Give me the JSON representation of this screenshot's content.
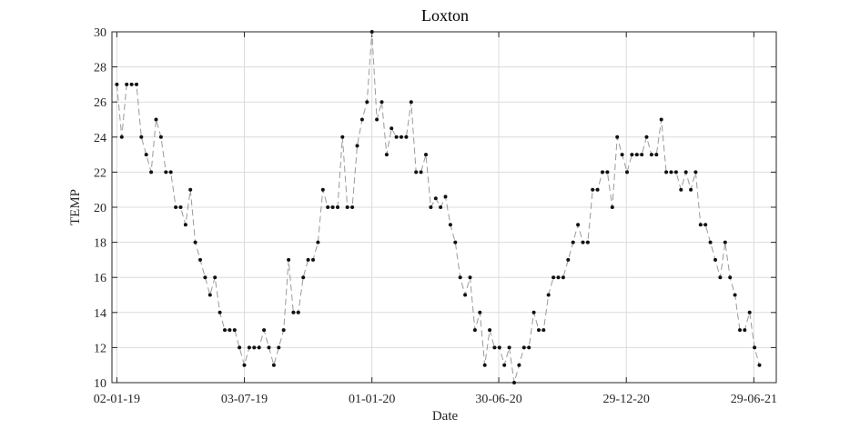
{
  "chart_data": {
    "type": "line",
    "title": "Loxton",
    "xlabel": "Date",
    "ylabel": "TEMP",
    "ylim": [
      10,
      30
    ],
    "yticks": [
      10,
      12,
      14,
      16,
      18,
      20,
      22,
      24,
      26,
      28,
      30
    ],
    "xlim": [
      "2018-12-26",
      "2021-07-31"
    ],
    "xticks": [
      {
        "date": "2019-01-02",
        "label": "02-01-19"
      },
      {
        "date": "2019-07-03",
        "label": "03-07-19"
      },
      {
        "date": "2020-01-01",
        "label": "01-01-20"
      },
      {
        "date": "2020-06-30",
        "label": "30-06-20"
      },
      {
        "date": "2020-12-29",
        "label": "29-12-20"
      },
      {
        "date": "2021-06-29",
        "label": "29-06-21"
      }
    ],
    "grid": true,
    "line_style": "dashed",
    "colors": {
      "line": "#9a9a9a",
      "marker": "#111111",
      "grid": "#dcdcdc",
      "axis": "#262626"
    },
    "series": [
      {
        "x": [
          "2019-01-02",
          "2019-01-09",
          "2019-01-16",
          "2019-01-23",
          "2019-01-30",
          "2019-02-06",
          "2019-02-13",
          "2019-02-20",
          "2019-02-27",
          "2019-03-06",
          "2019-03-13",
          "2019-03-20",
          "2019-03-27",
          "2019-04-03",
          "2019-04-10",
          "2019-04-17",
          "2019-04-24",
          "2019-05-01",
          "2019-05-08",
          "2019-05-15",
          "2019-05-22",
          "2019-05-29",
          "2019-06-05",
          "2019-06-12",
          "2019-06-19",
          "2019-06-26",
          "2019-07-03",
          "2019-07-10",
          "2019-07-17",
          "2019-07-24",
          "2019-07-31",
          "2019-08-07",
          "2019-08-14",
          "2019-08-21",
          "2019-08-28",
          "2019-09-04",
          "2019-09-11",
          "2019-09-18",
          "2019-09-25",
          "2019-10-02",
          "2019-10-09",
          "2019-10-16",
          "2019-10-23",
          "2019-10-30",
          "2019-11-06",
          "2019-11-13",
          "2019-11-20",
          "2019-11-27",
          "2019-12-04",
          "2019-12-11",
          "2019-12-18",
          "2019-12-25",
          "2020-01-01",
          "2020-01-08",
          "2020-01-15",
          "2020-01-22",
          "2020-01-29",
          "2020-02-05",
          "2020-02-12",
          "2020-02-19",
          "2020-02-26",
          "2020-03-04",
          "2020-03-11",
          "2020-03-18",
          "2020-03-25",
          "2020-04-01",
          "2020-04-08",
          "2020-04-15",
          "2020-04-22",
          "2020-04-29",
          "2020-05-06",
          "2020-05-13",
          "2020-05-20",
          "2020-05-27",
          "2020-06-03",
          "2020-06-10",
          "2020-06-17",
          "2020-06-24",
          "2020-07-01",
          "2020-07-08",
          "2020-07-15",
          "2020-07-22",
          "2020-07-29",
          "2020-08-05",
          "2020-08-12",
          "2020-08-19",
          "2020-08-26",
          "2020-09-02",
          "2020-09-09",
          "2020-09-16",
          "2020-09-23",
          "2020-09-30",
          "2020-10-07",
          "2020-10-14",
          "2020-10-21",
          "2020-10-28",
          "2020-11-04",
          "2020-11-11",
          "2020-11-18",
          "2020-11-25",
          "2020-12-02",
          "2020-12-09",
          "2020-12-16",
          "2020-12-23",
          "2020-12-30",
          "2021-01-06",
          "2021-01-13",
          "2021-01-20",
          "2021-01-27",
          "2021-02-03",
          "2021-02-10",
          "2021-02-17",
          "2021-02-24",
          "2021-03-03",
          "2021-03-10",
          "2021-03-17",
          "2021-03-24",
          "2021-03-31",
          "2021-04-07",
          "2021-04-14",
          "2021-04-21",
          "2021-04-28",
          "2021-05-05",
          "2021-05-12",
          "2021-05-19",
          "2021-05-26",
          "2021-06-02",
          "2021-06-09",
          "2021-06-16",
          "2021-06-23",
          "2021-06-30",
          "2021-07-07"
        ],
        "y": [
          27,
          24,
          27,
          27,
          27,
          24,
          23,
          22,
          25,
          24,
          22,
          22,
          20,
          20,
          19,
          21,
          18,
          17,
          16,
          15,
          16,
          14,
          13,
          13,
          13,
          12,
          11,
          12,
          12,
          12,
          13,
          12,
          11,
          12,
          13,
          17,
          14,
          14,
          16,
          17,
          17,
          18,
          21,
          20,
          20,
          20,
          24,
          20,
          20,
          23.5,
          25,
          26,
          30,
          25,
          26,
          23,
          24.5,
          24,
          24,
          24,
          26,
          22,
          22,
          23,
          20,
          20.5,
          20,
          20.6,
          19,
          18,
          16,
          15,
          16,
          13,
          14,
          11,
          13,
          12,
          12,
          11,
          12,
          10,
          11,
          12,
          12,
          14,
          13,
          13,
          15,
          16,
          16,
          16,
          17,
          18,
          19,
          18,
          18,
          21,
          21,
          22,
          22,
          20,
          24,
          23,
          22,
          23,
          23,
          23,
          24,
          23,
          23,
          25,
          22,
          22,
          22,
          21,
          22,
          21,
          22,
          19,
          19,
          18,
          17,
          16,
          18,
          16,
          15,
          13,
          13,
          14,
          12,
          11
        ]
      }
    ]
  }
}
